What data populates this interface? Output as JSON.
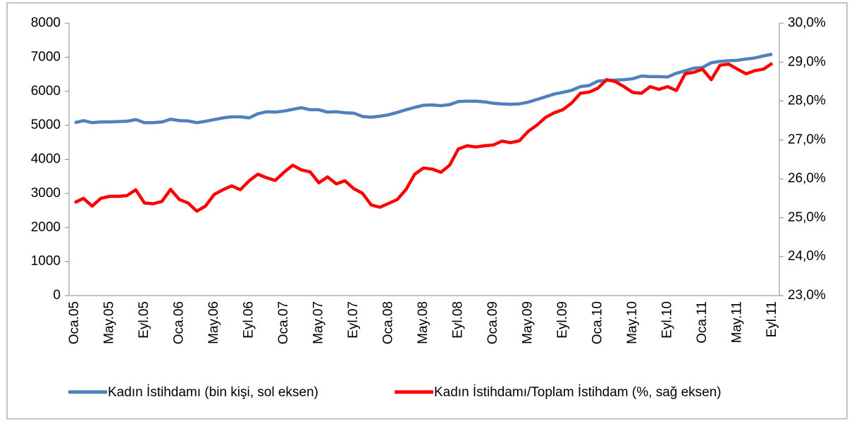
{
  "chart_data": {
    "type": "line",
    "categories": [
      "Oca.05",
      null,
      null,
      null,
      "May.05",
      null,
      null,
      null,
      "Eyl.05",
      null,
      null,
      null,
      "Oca.06",
      null,
      null,
      null,
      "May.06",
      null,
      null,
      null,
      "Eyl.06",
      null,
      null,
      null,
      "Oca.07",
      null,
      null,
      null,
      "May.07",
      null,
      null,
      null,
      "Eyl.07",
      null,
      null,
      null,
      "Oca.08",
      null,
      null,
      null,
      "May.08",
      null,
      null,
      null,
      "Eyl.08",
      null,
      null,
      null,
      "Oca.09",
      null,
      null,
      null,
      "May.09",
      null,
      null,
      null,
      "Eyl.09",
      null,
      null,
      null,
      "Oca.10",
      null,
      null,
      null,
      "May.10",
      null,
      null,
      null,
      "Eyl.10",
      null,
      null,
      null,
      "Oca.11",
      null,
      null,
      null,
      "May.11",
      null,
      null,
      null,
      "Eyl.11"
    ],
    "series": [
      {
        "name": "Kadın İstihdamı (bin kişi, sol eksen)",
        "color": "#4f81bd",
        "axis": "y",
        "values": [
          5080,
          5140,
          5080,
          5100,
          5100,
          5110,
          5120,
          5170,
          5080,
          5080,
          5100,
          5180,
          5140,
          5130,
          5080,
          5120,
          5170,
          5220,
          5250,
          5250,
          5220,
          5340,
          5400,
          5390,
          5420,
          5470,
          5520,
          5460,
          5460,
          5390,
          5400,
          5370,
          5360,
          5260,
          5240,
          5270,
          5310,
          5380,
          5460,
          5530,
          5590,
          5600,
          5580,
          5610,
          5700,
          5710,
          5710,
          5690,
          5650,
          5630,
          5620,
          5630,
          5680,
          5760,
          5840,
          5920,
          5970,
          6030,
          6140,
          6170,
          6300,
          6320,
          6330,
          6340,
          6370,
          6450,
          6430,
          6430,
          6420,
          6530,
          6600,
          6680,
          6700,
          6840,
          6880,
          6900,
          6910,
          6950,
          6980,
          7040,
          7090
        ]
      },
      {
        "name": "Kadın İstihdamı/Toplam İstihdam (%, sağ eksen)",
        "color": "#ff0000",
        "axis": "y2",
        "values": [
          25.39,
          25.5,
          25.3,
          25.5,
          25.55,
          25.55,
          25.57,
          25.72,
          25.38,
          25.36,
          25.42,
          25.73,
          25.47,
          25.38,
          25.17,
          25.3,
          25.6,
          25.72,
          25.82,
          25.72,
          25.95,
          26.12,
          26.03,
          25.96,
          26.17,
          26.35,
          26.23,
          26.18,
          25.9,
          26.05,
          25.87,
          25.95,
          25.75,
          25.63,
          25.33,
          25.27,
          25.37,
          25.47,
          25.73,
          26.12,
          26.28,
          26.25,
          26.17,
          26.35,
          26.77,
          26.85,
          26.82,
          26.85,
          26.87,
          26.97,
          26.93,
          26.98,
          27.22,
          27.38,
          27.58,
          27.7,
          27.78,
          27.95,
          28.2,
          28.23,
          28.33,
          28.55,
          28.5,
          28.37,
          28.22,
          28.2,
          28.37,
          28.3,
          28.37,
          28.27,
          28.7,
          28.74,
          28.82,
          28.55,
          28.92,
          28.95,
          28.82,
          28.7,
          28.78,
          28.82,
          28.97
        ]
      }
    ],
    "ylim": [
      0,
      8000
    ],
    "yticks": [
      0,
      1000,
      2000,
      3000,
      4000,
      5000,
      6000,
      7000,
      8000
    ],
    "y2lim": [
      23,
      30
    ],
    "y2ticks": [
      {
        "value": 23,
        "label": "23,0%"
      },
      {
        "value": 24,
        "label": "24,0%"
      },
      {
        "value": 25,
        "label": "25,0%"
      },
      {
        "value": 26,
        "label": "26,0%"
      },
      {
        "value": 27,
        "label": "27,0%"
      },
      {
        "value": 28,
        "label": "28,0%"
      },
      {
        "value": 29,
        "label": "29,0%"
      },
      {
        "value": 30,
        "label": "30,0%"
      }
    ],
    "grid": false,
    "legend": "bottom"
  }
}
